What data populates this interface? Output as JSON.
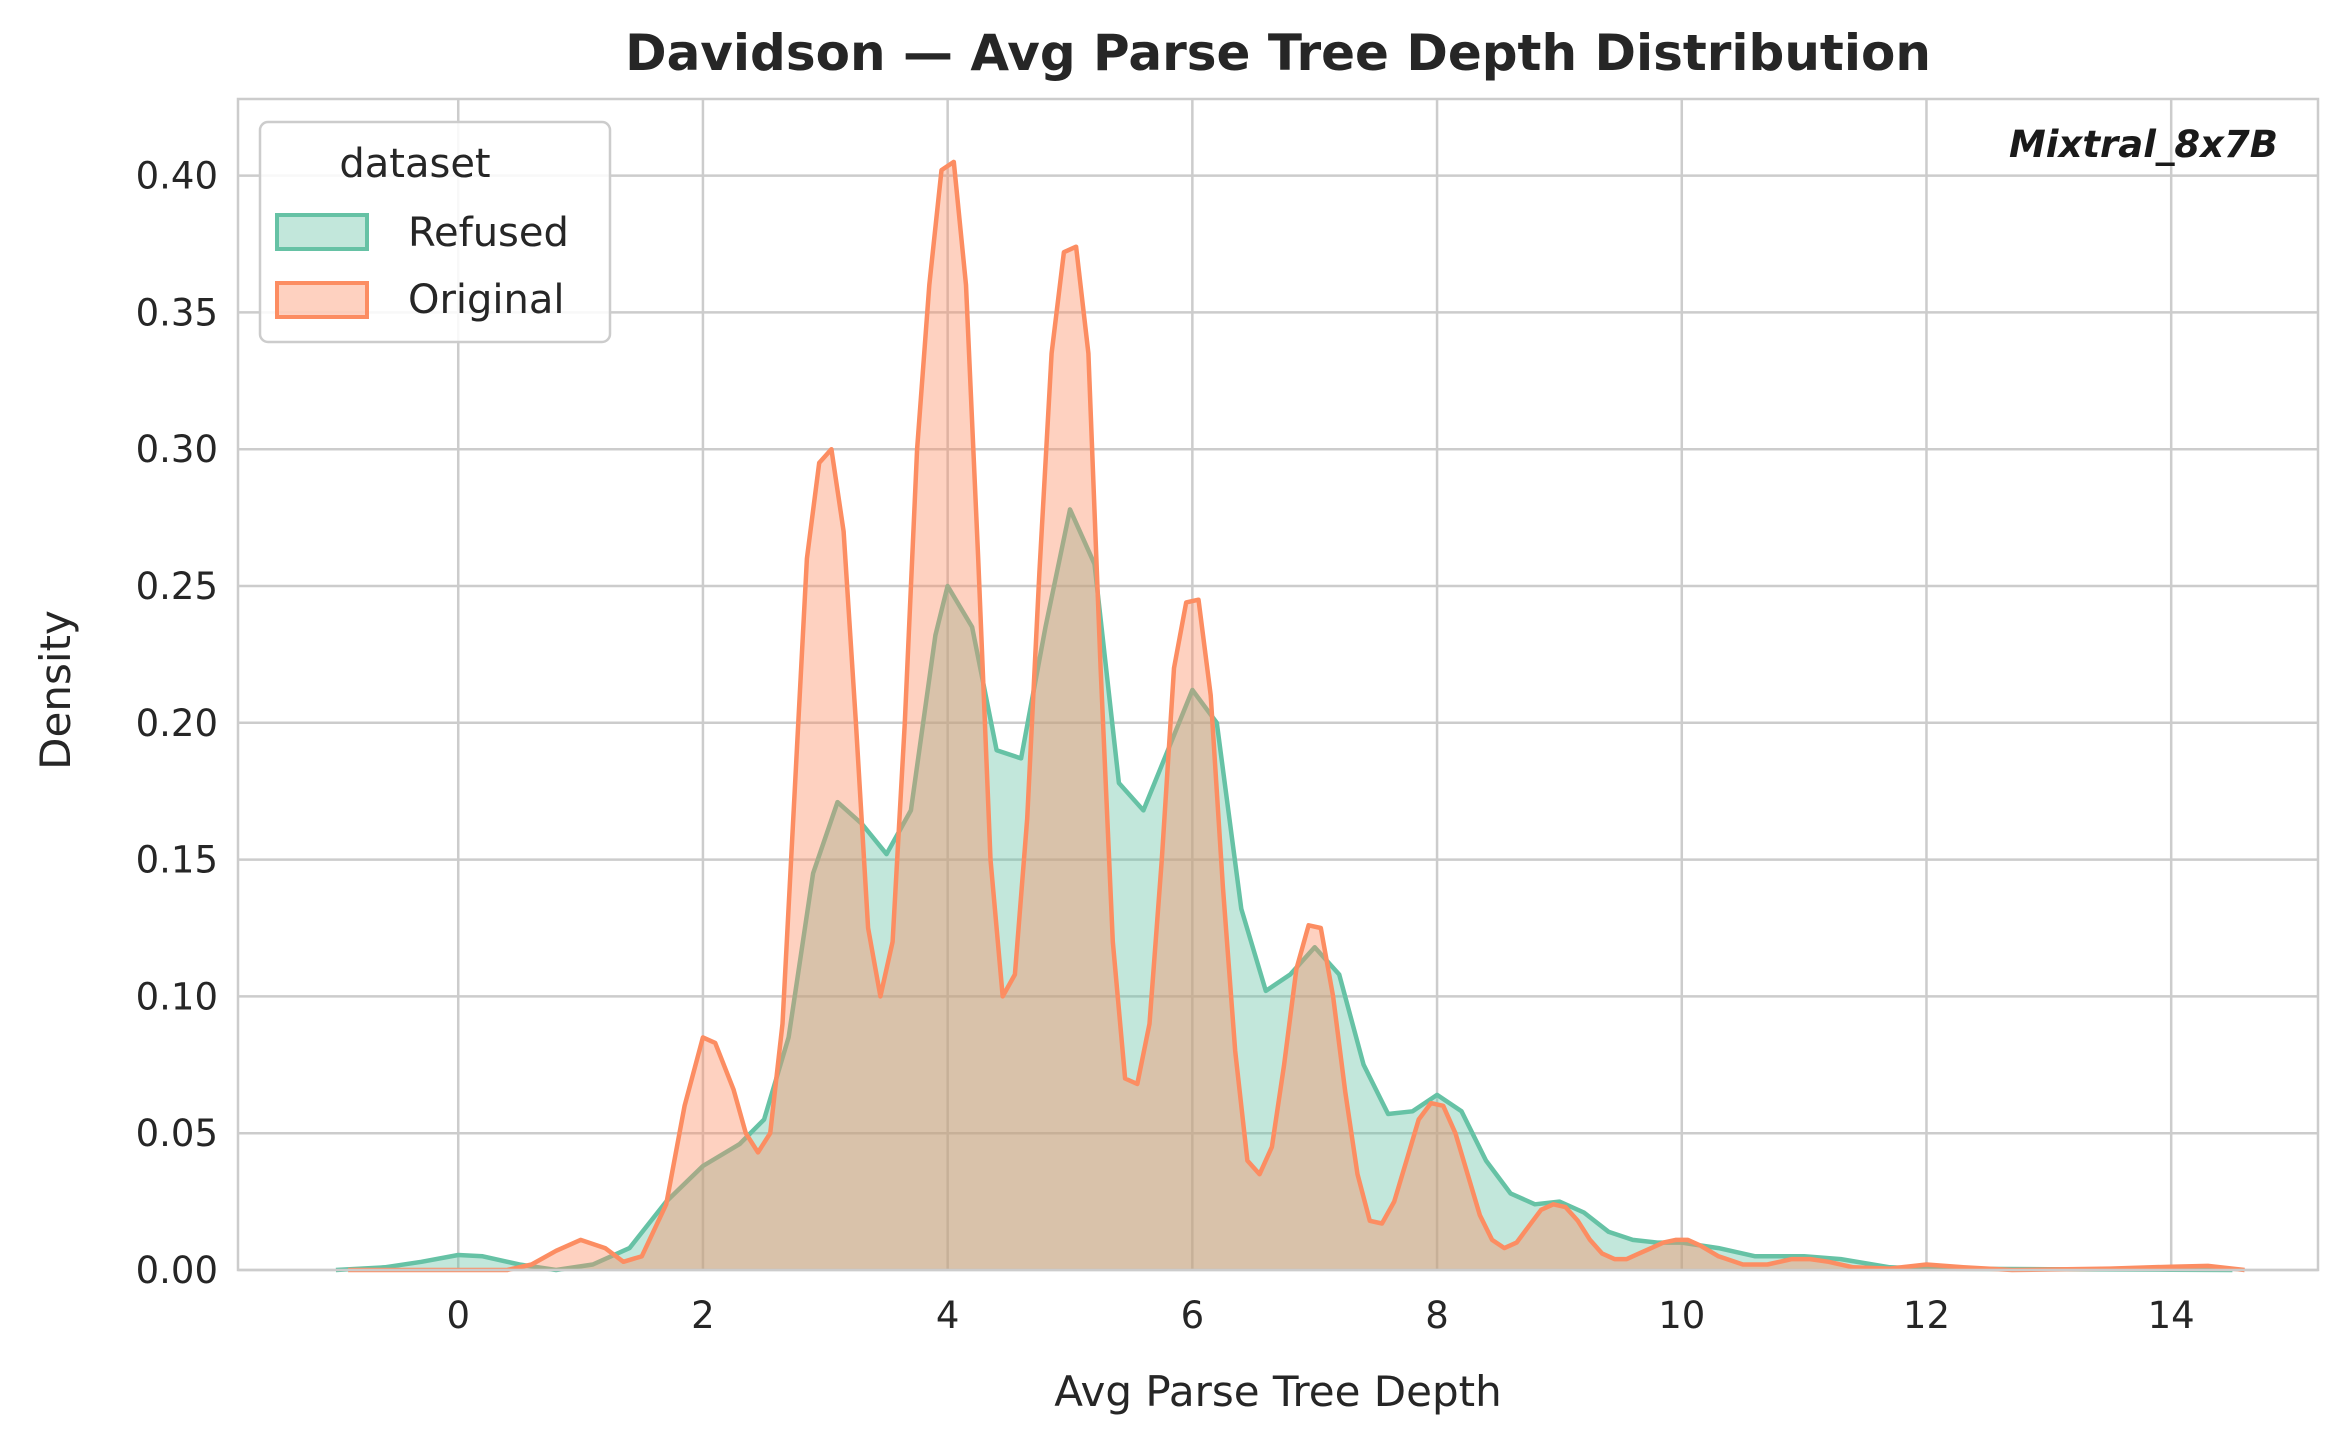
{
  "chart_data": {
    "type": "area",
    "title": "Davidson — Avg Parse Tree Depth Distribution",
    "xlabel": "Avg Parse Tree Depth",
    "ylabel": "Density",
    "xlim": [
      -1.8,
      15.2
    ],
    "ylim": [
      0,
      0.428
    ],
    "xticks": [
      0,
      2,
      4,
      6,
      8,
      10,
      12,
      14
    ],
    "xtick_labels": [
      "0",
      "2",
      "4",
      "6",
      "8",
      "10",
      "12",
      "14"
    ],
    "yticks": [
      0,
      0.05,
      0.1,
      0.15,
      0.2,
      0.25,
      0.3,
      0.35,
      0.4
    ],
    "ytick_labels": [
      "0.00",
      "0.05",
      "0.10",
      "0.15",
      "0.20",
      "0.25",
      "0.30",
      "0.35",
      "0.40"
    ],
    "grid": true,
    "legend": {
      "title": "dataset",
      "placement": "top-left"
    },
    "annotation": "Mixtral_8x7B",
    "series": [
      {
        "name": "Refused",
        "color": "#66c2a5",
        "points": [
          [
            -1.0,
            0.0
          ],
          [
            -0.6,
            0.001
          ],
          [
            -0.3,
            0.003
          ],
          [
            0.0,
            0.0055
          ],
          [
            0.2,
            0.005
          ],
          [
            0.5,
            0.002
          ],
          [
            0.8,
            0.0
          ],
          [
            1.1,
            0.002
          ],
          [
            1.4,
            0.008
          ],
          [
            1.7,
            0.025
          ],
          [
            2.0,
            0.038
          ],
          [
            2.3,
            0.046
          ],
          [
            2.5,
            0.055
          ],
          [
            2.7,
            0.085
          ],
          [
            2.9,
            0.145
          ],
          [
            3.1,
            0.171
          ],
          [
            3.3,
            0.163
          ],
          [
            3.5,
            0.152
          ],
          [
            3.7,
            0.168
          ],
          [
            3.9,
            0.232
          ],
          [
            4.0,
            0.25
          ],
          [
            4.2,
            0.235
          ],
          [
            4.4,
            0.19
          ],
          [
            4.6,
            0.187
          ],
          [
            4.8,
            0.235
          ],
          [
            5.0,
            0.278
          ],
          [
            5.2,
            0.258
          ],
          [
            5.4,
            0.178
          ],
          [
            5.6,
            0.168
          ],
          [
            5.8,
            0.19
          ],
          [
            6.0,
            0.212
          ],
          [
            6.2,
            0.2
          ],
          [
            6.4,
            0.132
          ],
          [
            6.6,
            0.102
          ],
          [
            6.8,
            0.108
          ],
          [
            7.0,
            0.118
          ],
          [
            7.2,
            0.108
          ],
          [
            7.4,
            0.075
          ],
          [
            7.6,
            0.057
          ],
          [
            7.8,
            0.058
          ],
          [
            8.0,
            0.064
          ],
          [
            8.2,
            0.058
          ],
          [
            8.4,
            0.04
          ],
          [
            8.6,
            0.028
          ],
          [
            8.8,
            0.024
          ],
          [
            9.0,
            0.025
          ],
          [
            9.2,
            0.021
          ],
          [
            9.4,
            0.014
          ],
          [
            9.6,
            0.011
          ],
          [
            9.8,
            0.01
          ],
          [
            10.0,
            0.01
          ],
          [
            10.3,
            0.008
          ],
          [
            10.6,
            0.005
          ],
          [
            11.0,
            0.005
          ],
          [
            11.3,
            0.004
          ],
          [
            11.7,
            0.001
          ],
          [
            12.0,
            0.0005
          ],
          [
            13.0,
            0.0003
          ],
          [
            14.0,
            0.0001
          ],
          [
            14.5,
            0.0
          ]
        ]
      },
      {
        "name": "Original",
        "color": "#fc8d62",
        "points": [
          [
            -0.9,
            0.0
          ],
          [
            0.4,
            0.0
          ],
          [
            0.6,
            0.002
          ],
          [
            0.8,
            0.007
          ],
          [
            1.0,
            0.011
          ],
          [
            1.2,
            0.008
          ],
          [
            1.35,
            0.003
          ],
          [
            1.5,
            0.005
          ],
          [
            1.7,
            0.024
          ],
          [
            1.85,
            0.06
          ],
          [
            2.0,
            0.085
          ],
          [
            2.1,
            0.083
          ],
          [
            2.25,
            0.066
          ],
          [
            2.35,
            0.05
          ],
          [
            2.45,
            0.043
          ],
          [
            2.55,
            0.05
          ],
          [
            2.65,
            0.09
          ],
          [
            2.75,
            0.175
          ],
          [
            2.85,
            0.26
          ],
          [
            2.95,
            0.295
          ],
          [
            3.05,
            0.3
          ],
          [
            3.15,
            0.27
          ],
          [
            3.25,
            0.2
          ],
          [
            3.35,
            0.125
          ],
          [
            3.45,
            0.1
          ],
          [
            3.55,
            0.12
          ],
          [
            3.65,
            0.2
          ],
          [
            3.75,
            0.3
          ],
          [
            3.85,
            0.36
          ],
          [
            3.95,
            0.402
          ],
          [
            4.05,
            0.405
          ],
          [
            4.15,
            0.36
          ],
          [
            4.25,
            0.26
          ],
          [
            4.35,
            0.15
          ],
          [
            4.45,
            0.1
          ],
          [
            4.55,
            0.108
          ],
          [
            4.65,
            0.165
          ],
          [
            4.75,
            0.255
          ],
          [
            4.85,
            0.335
          ],
          [
            4.95,
            0.372
          ],
          [
            5.05,
            0.374
          ],
          [
            5.15,
            0.335
          ],
          [
            5.25,
            0.22
          ],
          [
            5.35,
            0.12
          ],
          [
            5.45,
            0.07
          ],
          [
            5.55,
            0.068
          ],
          [
            5.65,
            0.09
          ],
          [
            5.75,
            0.15
          ],
          [
            5.85,
            0.22
          ],
          [
            5.95,
            0.244
          ],
          [
            6.05,
            0.245
          ],
          [
            6.15,
            0.21
          ],
          [
            6.25,
            0.14
          ],
          [
            6.35,
            0.08
          ],
          [
            6.45,
            0.04
          ],
          [
            6.55,
            0.035
          ],
          [
            6.65,
            0.045
          ],
          [
            6.75,
            0.075
          ],
          [
            6.85,
            0.11
          ],
          [
            6.95,
            0.126
          ],
          [
            7.05,
            0.125
          ],
          [
            7.15,
            0.1
          ],
          [
            7.25,
            0.065
          ],
          [
            7.35,
            0.035
          ],
          [
            7.45,
            0.018
          ],
          [
            7.55,
            0.017
          ],
          [
            7.65,
            0.025
          ],
          [
            7.75,
            0.04
          ],
          [
            7.85,
            0.055
          ],
          [
            7.95,
            0.061
          ],
          [
            8.05,
            0.06
          ],
          [
            8.15,
            0.05
          ],
          [
            8.25,
            0.035
          ],
          [
            8.35,
            0.02
          ],
          [
            8.45,
            0.011
          ],
          [
            8.55,
            0.008
          ],
          [
            8.65,
            0.01
          ],
          [
            8.75,
            0.016
          ],
          [
            8.85,
            0.022
          ],
          [
            8.95,
            0.024
          ],
          [
            9.05,
            0.023
          ],
          [
            9.15,
            0.018
          ],
          [
            9.25,
            0.011
          ],
          [
            9.35,
            0.006
          ],
          [
            9.45,
            0.004
          ],
          [
            9.55,
            0.004
          ],
          [
            9.65,
            0.006
          ],
          [
            9.75,
            0.008
          ],
          [
            9.85,
            0.01
          ],
          [
            9.95,
            0.011
          ],
          [
            10.05,
            0.011
          ],
          [
            10.15,
            0.009
          ],
          [
            10.3,
            0.005
          ],
          [
            10.5,
            0.002
          ],
          [
            10.7,
            0.002
          ],
          [
            10.9,
            0.004
          ],
          [
            11.05,
            0.004
          ],
          [
            11.2,
            0.003
          ],
          [
            11.4,
            0.001
          ],
          [
            11.7,
            0.0005
          ],
          [
            12.0,
            0.002
          ],
          [
            12.3,
            0.001
          ],
          [
            12.7,
            0.0
          ],
          [
            13.5,
            0.0005
          ],
          [
            14.0,
            0.0012
          ],
          [
            14.3,
            0.0015
          ],
          [
            14.6,
            0.0
          ]
        ]
      }
    ]
  }
}
